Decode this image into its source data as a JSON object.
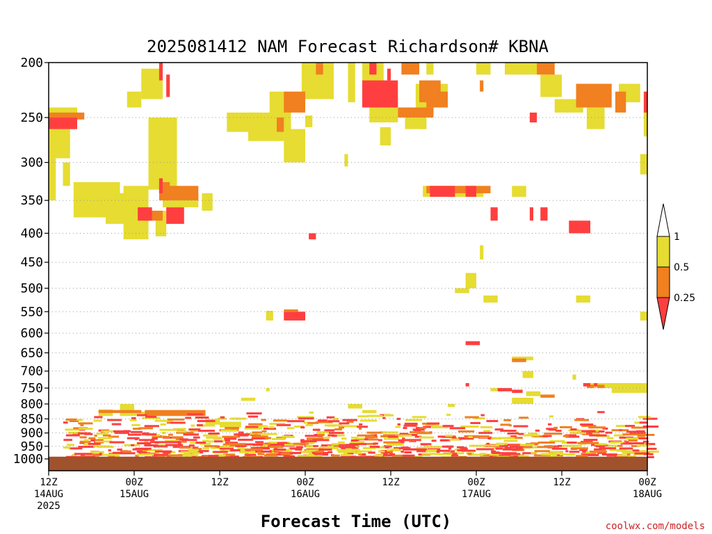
{
  "chart_data": {
    "type": "heatmap",
    "title": "2025081412 NAM Forecast Richardson# KBNA",
    "xlabel": "Forecast Time (UTC)",
    "ylabel": "",
    "x_unit": "hours since 12Z 14AUG 2025",
    "xlim": [
      0,
      84
    ],
    "ylim": [
      1000,
      200
    ],
    "y_scale": "log",
    "grid": "dotted horizontal at pressure ticks",
    "x_ticks": [
      {
        "hour": 0,
        "lines": [
          "12Z",
          "14AUG",
          "2025"
        ]
      },
      {
        "hour": 12,
        "lines": [
          "00Z",
          "15AUG"
        ]
      },
      {
        "hour": 24,
        "lines": [
          "12Z"
        ]
      },
      {
        "hour": 36,
        "lines": [
          "00Z",
          "16AUG"
        ]
      },
      {
        "hour": 48,
        "lines": [
          "12Z"
        ]
      },
      {
        "hour": 60,
        "lines": [
          "00Z",
          "17AUG"
        ]
      },
      {
        "hour": 72,
        "lines": [
          "12Z"
        ]
      },
      {
        "hour": 84,
        "lines": [
          "00Z",
          "18AUG"
        ]
      }
    ],
    "y_ticks": [
      200,
      250,
      300,
      350,
      400,
      450,
      500,
      550,
      600,
      650,
      700,
      750,
      800,
      850,
      900,
      950,
      1000
    ],
    "colorbar": {
      "ticks": [
        "1",
        "0.5",
        "0.25"
      ],
      "bins": [
        {
          "key": "lt025",
          "color": "#ff3f3f"
        },
        {
          "key": "c025_05",
          "color": "#f08020"
        },
        {
          "key": "c05_1",
          "color": "#e6dc32"
        }
      ],
      "above_max_color": "#ffffff",
      "below_min_color": "#ff3f3f"
    },
    "ground": {
      "p_top": 991,
      "p_bottom": 1000,
      "color": "#a0522d"
    },
    "approximate_cells": {
      "c05_1": [
        [
          0,
          4,
          240,
          262
        ],
        [
          0,
          3,
          262,
          295
        ],
        [
          0,
          1,
          295,
          350
        ],
        [
          2,
          3,
          300,
          330
        ],
        [
          3.5,
          10,
          325,
          375
        ],
        [
          8,
          12,
          340,
          385
        ],
        [
          10.5,
          14,
          330,
          410
        ],
        [
          11,
          13,
          225,
          240
        ],
        [
          13,
          16,
          205,
          232
        ],
        [
          14,
          18,
          250,
          335
        ],
        [
          16,
          21,
          340,
          360
        ],
        [
          21.5,
          23,
          340,
          365
        ],
        [
          25,
          29,
          245,
          265
        ],
        [
          28,
          33,
          245,
          275
        ],
        [
          31,
          34,
          225,
          265
        ],
        [
          33,
          36,
          262,
          300
        ],
        [
          35.5,
          40,
          200,
          232
        ],
        [
          36,
          37,
          248,
          260
        ],
        [
          42,
          43,
          200,
          235
        ],
        [
          44,
          47,
          200,
          225
        ],
        [
          45,
          49,
          230,
          255
        ],
        [
          46.5,
          48,
          260,
          280
        ],
        [
          50,
          53,
          250,
          262
        ],
        [
          51.5,
          56,
          218,
          240
        ],
        [
          53,
          54,
          200,
          210
        ],
        [
          52,
          53,
          240,
          262
        ],
        [
          41.5,
          42,
          290,
          305
        ],
        [
          52.5,
          61,
          330,
          345
        ],
        [
          65,
          67,
          330,
          345
        ],
        [
          58.5,
          60,
          470,
          500
        ],
        [
          57,
          59,
          500,
          510
        ],
        [
          61,
          63,
          515,
          530
        ],
        [
          65,
          68,
          660,
          670
        ],
        [
          66.5,
          68,
          700,
          720
        ],
        [
          74,
          76,
          515,
          530
        ],
        [
          60,
          62,
          200,
          210
        ],
        [
          64,
          69,
          200,
          210
        ],
        [
          69,
          72,
          210,
          230
        ],
        [
          71,
          75,
          232,
          245
        ],
        [
          75.5,
          78,
          240,
          262
        ],
        [
          80,
          83,
          218,
          235
        ],
        [
          83.5,
          84,
          230,
          270
        ],
        [
          83,
          84,
          290,
          315
        ],
        [
          15,
          16.5,
          365,
          405
        ],
        [
          60.5,
          61,
          420,
          445
        ],
        [
          83,
          84,
          550,
          570
        ],
        [
          30.5,
          31.5,
          548,
          570
        ],
        [
          62,
          64,
          750,
          760
        ],
        [
          67,
          69,
          760,
          775
        ],
        [
          65,
          68,
          780,
          800
        ],
        [
          73.5,
          74,
          710,
          725
        ],
        [
          76,
          84,
          735,
          750
        ],
        [
          79,
          84,
          750,
          765
        ],
        [
          27,
          29,
          780,
          790
        ],
        [
          30.5,
          31,
          750,
          760
        ],
        [
          42,
          44,
          800,
          815
        ],
        [
          44,
          46,
          820,
          830
        ],
        [
          56,
          57,
          800,
          810
        ],
        [
          7,
          9,
          818,
          840
        ],
        [
          10,
          12,
          800,
          840
        ],
        [
          12,
          16,
          825,
          840
        ],
        [
          20,
          22,
          825,
          840
        ],
        [
          22,
          24,
          850,
          870
        ],
        [
          24,
          27,
          860,
          880
        ]
      ],
      "c025_05": [
        [
          0,
          5,
          245,
          252
        ],
        [
          32,
          33,
          250,
          265
        ],
        [
          33,
          36,
          225,
          245
        ],
        [
          37.5,
          38.5,
          200,
          210
        ],
        [
          49.5,
          52,
          200,
          210
        ],
        [
          52,
          55,
          215,
          235
        ],
        [
          53,
          56,
          225,
          240
        ],
        [
          49,
          54,
          240,
          250
        ],
        [
          60.5,
          61,
          215,
          225
        ],
        [
          68.5,
          71,
          200,
          210
        ],
        [
          74,
          79,
          218,
          240
        ],
        [
          79.5,
          81,
          225,
          245
        ],
        [
          15.5,
          17,
          325,
          350
        ],
        [
          16,
          21,
          330,
          350
        ],
        [
          13.5,
          16,
          365,
          380
        ],
        [
          53,
          62,
          330,
          340
        ],
        [
          65,
          67,
          665,
          675
        ],
        [
          7,
          13,
          820,
          830
        ],
        [
          13.5,
          22,
          820,
          840
        ],
        [
          69,
          71,
          770,
          780
        ],
        [
          75.5,
          76.5,
          740,
          750
        ],
        [
          77,
          78,
          740,
          750
        ],
        [
          33,
          35,
          545,
          550
        ]
      ],
      "lt025": [
        [
          0,
          4,
          250,
          262
        ],
        [
          15.5,
          16,
          200,
          215
        ],
        [
          16.5,
          17,
          210,
          230
        ],
        [
          15.5,
          16,
          320,
          340
        ],
        [
          12.5,
          14.5,
          360,
          380
        ],
        [
          16.5,
          19,
          360,
          385
        ],
        [
          33,
          36,
          550,
          570
        ],
        [
          36.5,
          37.5,
          400,
          410
        ],
        [
          44,
          49,
          215,
          240
        ],
        [
          45,
          46,
          200,
          210
        ],
        [
          47.5,
          48,
          205,
          215
        ],
        [
          53.5,
          57,
          330,
          345
        ],
        [
          56,
          57,
          340,
          345
        ],
        [
          58.5,
          60,
          330,
          345
        ],
        [
          62,
          63,
          360,
          380
        ],
        [
          67.5,
          68.5,
          245,
          255
        ],
        [
          67.5,
          68,
          360,
          380
        ],
        [
          69,
          70,
          360,
          380
        ],
        [
          73,
          76,
          380,
          400
        ],
        [
          83.5,
          84,
          225,
          245
        ],
        [
          58.5,
          60.5,
          620,
          630
        ],
        [
          58.5,
          59,
          735,
          745
        ],
        [
          63,
          65,
          750,
          760
        ],
        [
          65,
          66.5,
          755,
          765
        ],
        [
          75,
          76,
          735,
          745
        ],
        [
          76.5,
          77,
          735,
          745
        ]
      ]
    },
    "low_level_noise": {
      "seed": 20250814,
      "band_top_hpa": 820,
      "band_bottom_hpa": 990,
      "left_hour": 2,
      "right_hour": 84
    }
  },
  "credit": "coolwx.com/models"
}
